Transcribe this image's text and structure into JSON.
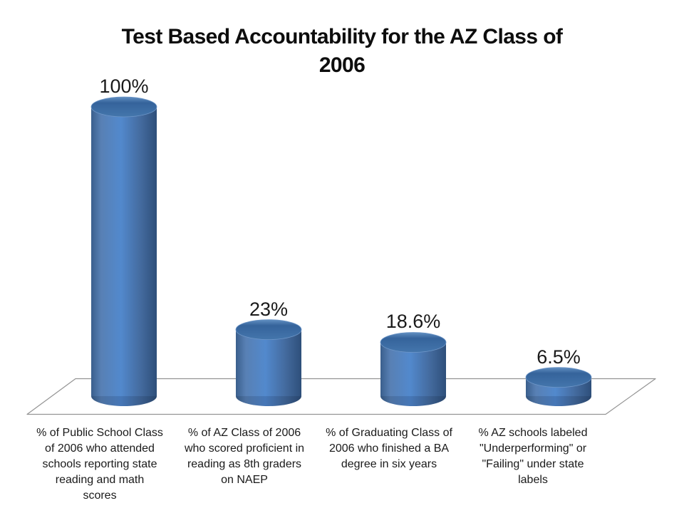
{
  "slide": {
    "title": "Test Based Accountability for the AZ Class of\n2006"
  },
  "chart_data": {
    "type": "bar",
    "subtype": "3d-cylinder",
    "title": "Test Based Accountability for the AZ Class of 2006",
    "categories": [
      "% of Public School Class\nof 2006 who attended\nschools reporting state\nreading and math\nscores",
      "% of AZ Class of 2006\nwho scored proficient in\nreading as 8th graders\non NAEP",
      "% of Graduating Class of\n2006 who finished a BA\ndegree in six years",
      "% AZ schools labeled\n\"Underperforming\" or\n\"Failing\" under state\nlabels"
    ],
    "values": [
      100,
      23,
      18.6,
      6.5
    ],
    "value_labels": [
      "100%",
      "23%",
      "18.6%",
      "6.5%"
    ],
    "xlabel": "",
    "ylabel": "",
    "ylim": [
      0,
      100
    ],
    "grid": false,
    "legend": false,
    "axis_labels_visible": false,
    "colors": {
      "bar_fill": "#4F81BD",
      "bar_edge_dark": "#2E4F7A",
      "bar_highlight": "#5289CD",
      "cap_fill": "#35639B",
      "floor_fill": "#FFFFFF",
      "floor_outline": "#949494",
      "text": "#1A1A1A",
      "title_text": "#0D0D0D",
      "background": "#FFFFFF"
    }
  }
}
